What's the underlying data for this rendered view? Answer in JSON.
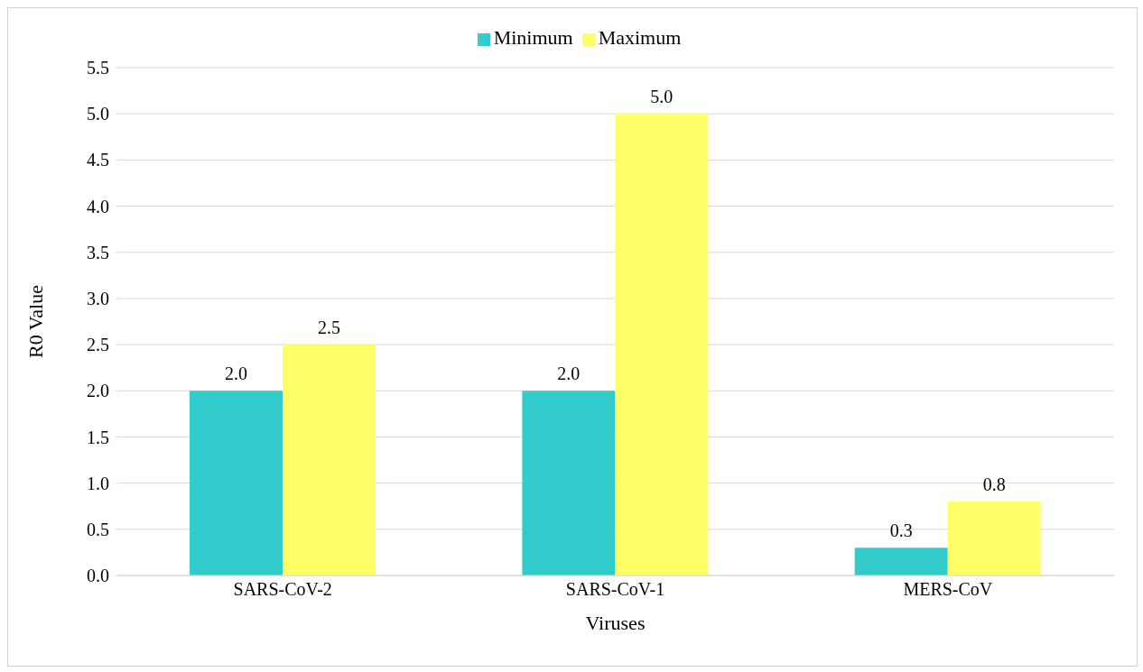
{
  "chart_data": {
    "type": "bar",
    "xlabel": "Viruses",
    "ylabel": "R0 Value",
    "categories": [
      "SARS-CoV-2",
      "SARS-CoV-1",
      "MERS-CoV"
    ],
    "series": [
      {
        "name": "Minimum",
        "color": "#33cccc",
        "values": [
          2.0,
          2.0,
          0.3
        ],
        "value_labels": [
          "2.0",
          "2.0",
          "0.3"
        ]
      },
      {
        "name": "Maximum",
        "color": "#ffff66",
        "values": [
          2.5,
          5.0,
          0.8
        ],
        "value_labels": [
          "2.5",
          "5.0",
          "0.8"
        ]
      }
    ],
    "ylim": [
      0,
      5.5
    ],
    "yticks": [
      {
        "value": 0,
        "label": "0.0"
      },
      {
        "value": 0.5,
        "label": "0.5"
      },
      {
        "value": 1,
        "label": "1.0"
      },
      {
        "value": 1.5,
        "label": "1.5"
      },
      {
        "value": 2,
        "label": "2.0"
      },
      {
        "value": 2.5,
        "label": "2.5"
      },
      {
        "value": 3,
        "label": "3.0"
      },
      {
        "value": 3.5,
        "label": "3.5"
      },
      {
        "value": 4,
        "label": "4.0"
      },
      {
        "value": 4.5,
        "label": "4.5"
      },
      {
        "value": 5,
        "label": "5.0"
      },
      {
        "value": 5.5,
        "label": "5.5"
      }
    ],
    "grid": "y",
    "legend": "top"
  }
}
